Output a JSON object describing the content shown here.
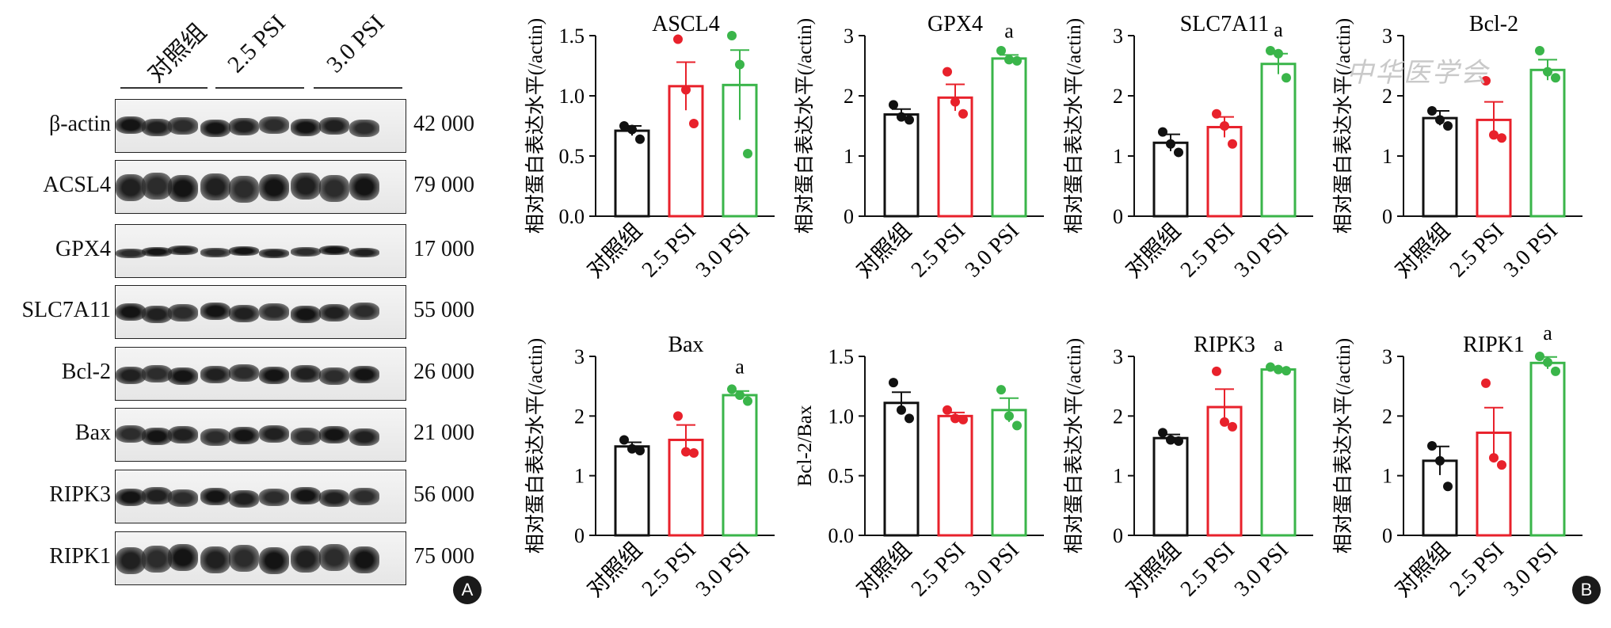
{
  "groups": [
    "对照组",
    "2.5 PSI",
    "3.0 PSI"
  ],
  "panel_labels": {
    "a": "A",
    "b": "B"
  },
  "watermark": "中华医学会",
  "colors": {
    "control": "#111111",
    "psi25": "#e8212b",
    "psi30": "#3ab54a"
  },
  "blot": {
    "rows": [
      {
        "label": "β-actin",
        "mw": "42 000"
      },
      {
        "label": "ACSL4",
        "mw": "79 000"
      },
      {
        "label": "GPX4",
        "mw": "17 000"
      },
      {
        "label": "SLC7A11",
        "mw": "55 000"
      },
      {
        "label": "Bcl-2",
        "mw": "26 000"
      },
      {
        "label": "Bax",
        "mw": "21 000"
      },
      {
        "label": "RIPK3",
        "mw": "56 000"
      },
      {
        "label": "RIPK1",
        "mw": "75 000"
      }
    ]
  },
  "chart_data": [
    {
      "type": "bar",
      "title": "ASCL4",
      "ylabel": "相对蛋白表达水平(/actin)",
      "categories": [
        "对照组",
        "2.5 PSI",
        "3.0 PSI"
      ],
      "ylim": [
        0,
        1.5
      ],
      "yticks": [
        "0.0",
        "0.5",
        "1.0",
        "1.5"
      ],
      "tickvals": [
        0,
        0.5,
        1.0,
        1.5
      ],
      "values": [
        0.71,
        1.08,
        1.09
      ],
      "errors": [
        0.04,
        0.2,
        0.29
      ],
      "points": [
        [
          0.75,
          0.72,
          0.64
        ],
        [
          1.47,
          1.05,
          0.77
        ],
        [
          1.5,
          1.26,
          0.52
        ]
      ],
      "sig": [
        "",
        "",
        ""
      ]
    },
    {
      "type": "bar",
      "title": "GPX4",
      "ylabel": "相对蛋白表达水平(/actin)",
      "categories": [
        "对照组",
        "2.5 PSI",
        "3.0 PSI"
      ],
      "ylim": [
        0,
        3
      ],
      "yticks": [
        "0",
        "1",
        "2",
        "3"
      ],
      "tickvals": [
        0,
        1,
        2,
        3
      ],
      "values": [
        1.69,
        1.97,
        2.62
      ],
      "errors": [
        0.09,
        0.22,
        0.06
      ],
      "points": [
        [
          1.85,
          1.65,
          1.6
        ],
        [
          2.4,
          1.9,
          1.7
        ],
        [
          2.75,
          2.6,
          2.58
        ]
      ],
      "sig": [
        "",
        "",
        "a"
      ]
    },
    {
      "type": "bar",
      "title": "SLC7A11",
      "ylabel": "相对蛋白表达水平(/actin)",
      "categories": [
        "对照组",
        "2.5 PSI",
        "3.0 PSI"
      ],
      "ylim": [
        0,
        3
      ],
      "yticks": [
        "0",
        "1",
        "2",
        "3"
      ],
      "tickvals": [
        0,
        1,
        2,
        3
      ],
      "values": [
        1.22,
        1.48,
        2.53
      ],
      "errors": [
        0.14,
        0.17,
        0.17
      ],
      "points": [
        [
          1.4,
          1.2,
          1.06
        ],
        [
          1.7,
          1.5,
          1.2
        ],
        [
          2.75,
          2.7,
          2.3
        ]
      ],
      "sig": [
        "",
        "",
        "a"
      ]
    },
    {
      "type": "bar",
      "title": "Bcl-2",
      "ylabel": "相对蛋白表达水平(/actin)",
      "categories": [
        "对照组",
        "2.5 PSI",
        "3.0 PSI"
      ],
      "ylim": [
        0,
        3
      ],
      "yticks": [
        "0",
        "1",
        "2",
        "3"
      ],
      "tickvals": [
        0,
        1,
        2,
        3
      ],
      "values": [
        1.63,
        1.6,
        2.43
      ],
      "errors": [
        0.12,
        0.3,
        0.17
      ],
      "points": [
        [
          1.75,
          1.6,
          1.5
        ],
        [
          2.25,
          1.35,
          1.3
        ],
        [
          2.75,
          2.4,
          2.3
        ]
      ],
      "sig": [
        "",
        "",
        ""
      ]
    },
    {
      "type": "bar",
      "title": "Bax",
      "ylabel": "相对蛋白表达水平(/actin)",
      "categories": [
        "对照组",
        "2.5 PSI",
        "3.0 PSI"
      ],
      "ylim": [
        0,
        3
      ],
      "yticks": [
        "0",
        "1",
        "2",
        "3"
      ],
      "tickvals": [
        0,
        1,
        2,
        3
      ],
      "values": [
        1.49,
        1.6,
        2.35
      ],
      "errors": [
        0.07,
        0.25,
        0.07
      ],
      "points": [
        [
          1.6,
          1.45,
          1.42
        ],
        [
          2.0,
          1.4,
          1.38
        ],
        [
          2.45,
          2.35,
          2.25
        ]
      ],
      "sig": [
        "",
        "",
        "a"
      ]
    },
    {
      "type": "bar",
      "title": "",
      "ylabel": "Bcl-2/Bax",
      "categories": [
        "对照组",
        "2.5 PSI",
        "3.0 PSI"
      ],
      "ylim": [
        0,
        1.5
      ],
      "yticks": [
        "0.0",
        "0.5",
        "1.0",
        "1.5"
      ],
      "tickvals": [
        0,
        0.5,
        1.0,
        1.5
      ],
      "values": [
        1.11,
        1.0,
        1.05
      ],
      "errors": [
        0.09,
        0.03,
        0.1
      ],
      "points": [
        [
          1.28,
          1.05,
          0.98
        ],
        [
          1.05,
          0.98,
          0.97
        ],
        [
          1.22,
          1.0,
          0.92
        ]
      ],
      "sig": [
        "",
        "",
        ""
      ]
    },
    {
      "type": "bar",
      "title": "RIPK3",
      "ylabel": "相对蛋白表达水平(/actin)",
      "categories": [
        "对照组",
        "2.5 PSI",
        "3.0 PSI"
      ],
      "ylim": [
        0,
        3
      ],
      "yticks": [
        "0",
        "1",
        "2",
        "3"
      ],
      "tickvals": [
        0,
        1,
        2,
        3
      ],
      "values": [
        1.63,
        2.15,
        2.78
      ],
      "errors": [
        0.06,
        0.3,
        0.02
      ],
      "points": [
        [
          1.72,
          1.6,
          1.58
        ],
        [
          2.75,
          1.9,
          1.82
        ],
        [
          2.82,
          2.78,
          2.76
        ]
      ],
      "sig": [
        "",
        "",
        "a"
      ]
    },
    {
      "type": "bar",
      "title": "RIPK1",
      "ylabel": "相对蛋白表达水平(/actin)",
      "categories": [
        "对照组",
        "2.5 PSI",
        "3.0 PSI"
      ],
      "ylim": [
        0,
        3
      ],
      "yticks": [
        "0",
        "1",
        "2",
        "3"
      ],
      "tickvals": [
        0,
        1,
        2,
        3
      ],
      "values": [
        1.25,
        1.72,
        2.89
      ],
      "errors": [
        0.24,
        0.42,
        0.1
      ],
      "points": [
        [
          1.5,
          1.25,
          0.82
        ],
        [
          2.55,
          1.3,
          1.18
        ],
        [
          3.0,
          2.9,
          2.75
        ]
      ],
      "sig": [
        "",
        "",
        "a"
      ]
    }
  ]
}
